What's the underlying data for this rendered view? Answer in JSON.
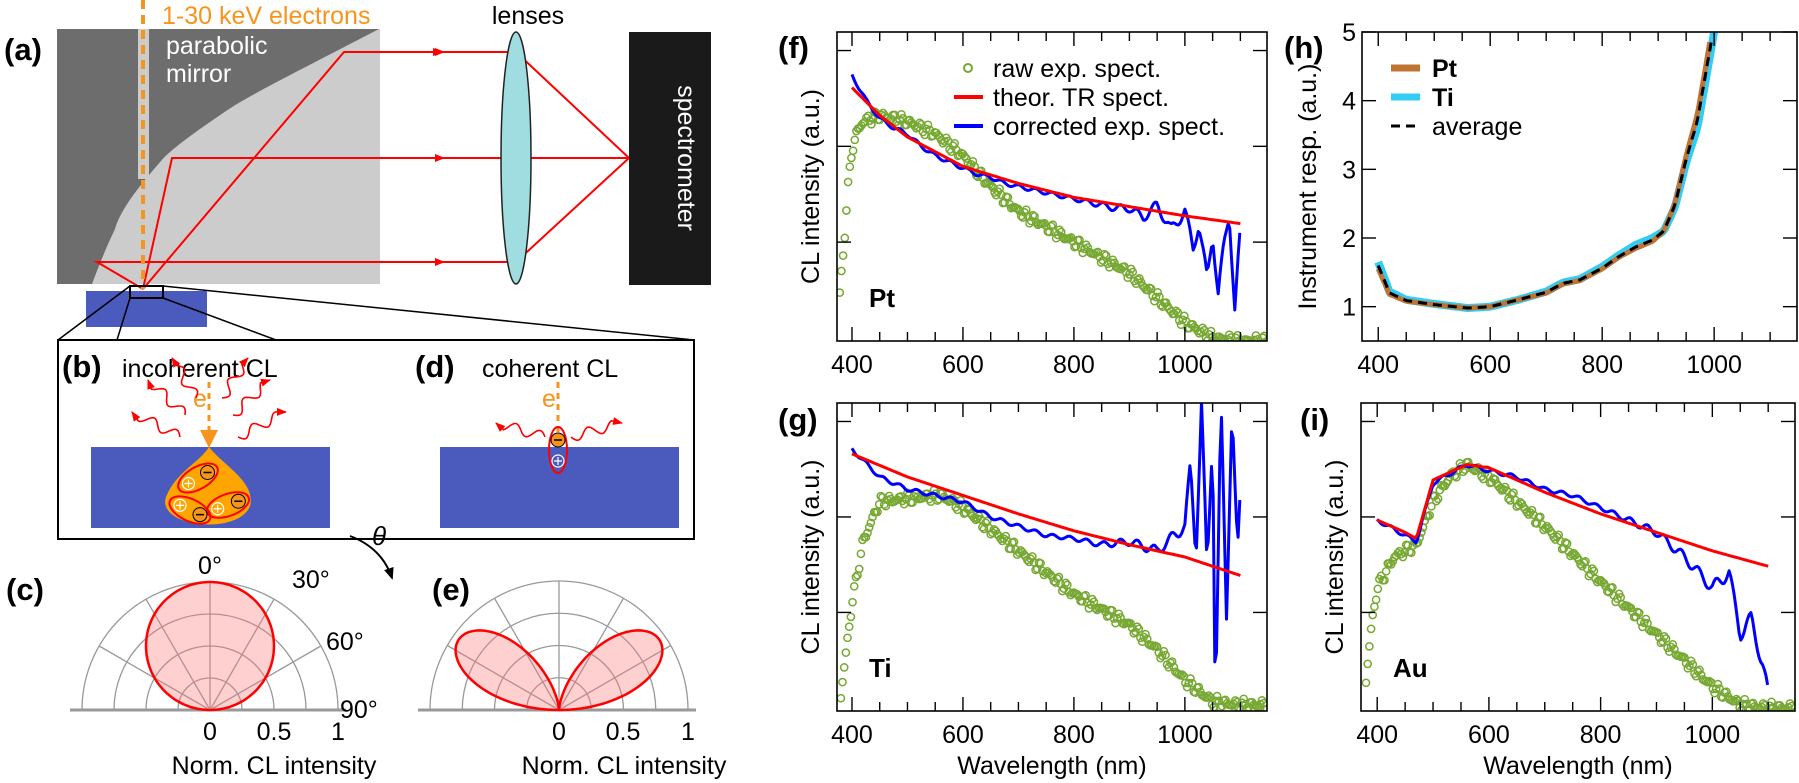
{
  "panel_labels": {
    "a": "(a)",
    "b": "(b)",
    "c": "(c)",
    "d": "(d)",
    "e": "(e)",
    "f": "(f)",
    "g": "(g)",
    "h": "(h)",
    "i": "(i)"
  },
  "diagram": {
    "beam_label": "1-30 keV electrons",
    "mirror_label_line1": "parabolic",
    "mirror_label_line2": "mirror",
    "lenses_label": "lenses",
    "spectrometer_label": "spectrometer",
    "b_title": "incoherent CL",
    "d_title": "coherent CL",
    "electron_symbol_b": "e",
    "electron_symbol_d": "e",
    "icons": [
      "electron-minus-icon",
      "hole-plus-icon",
      "photon-wavy-arrow-icon"
    ],
    "colors": {
      "beam": "#f7941d",
      "mirror_dark": "#6d6d6d",
      "mirror_light": "#cccccc",
      "lens": "#9fdde0",
      "sample": "#4a5bbd",
      "ray": "#ff0000",
      "interaction_volume": "#ffa500",
      "spectrometer": "#1a1a1a"
    }
  },
  "polar": [
    {
      "panel": "c",
      "angle_labels": [
        "0°",
        "30°",
        "60°",
        "90°"
      ],
      "theta_symbol": "θ",
      "r_tick_labels": [
        "0",
        "0.5",
        "1"
      ],
      "xlabel": "Norm. CL intensity",
      "lobe": "lambertian"
    },
    {
      "panel": "e",
      "r_tick_labels": [
        "0",
        "0.5",
        "1"
      ],
      "xlabel": "Norm. CL intensity",
      "lobe": "transition-radiation"
    }
  ],
  "chart_data": [
    {
      "panel": "f",
      "type": "line",
      "title": "",
      "xlabel": "",
      "ylabel": "CL intensity (a.u.)",
      "xlim": [
        373,
        1148
      ],
      "ylim": [
        0,
        1
      ],
      "grid": false,
      "x_ticks": [
        400,
        600,
        800,
        1000
      ],
      "x_tick_labels": [
        "400",
        "600",
        "800",
        "1000"
      ],
      "y_ticks": [
        0.32,
        0.63,
        0.94
      ],
      "y_tick_labels": [],
      "sample_label": "Pt",
      "legend_position": "top-right",
      "series": [
        {
          "name": "raw exp. spect.",
          "style": "markers",
          "color": "#76a832",
          "x": [
            378,
            385,
            392,
            400,
            410,
            420,
            450,
            500,
            550,
            600,
            650,
            700,
            750,
            800,
            850,
            900,
            950,
            1000,
            1050,
            1100,
            1150
          ],
          "y": [
            0.15,
            0.3,
            0.48,
            0.62,
            0.68,
            0.71,
            0.73,
            0.71,
            0.67,
            0.6,
            0.5,
            0.42,
            0.37,
            0.32,
            0.27,
            0.22,
            0.14,
            0.06,
            0.01,
            0.0,
            0.0
          ]
        },
        {
          "name": "corrected exp. spect.",
          "style": "line",
          "color": "#0000ff",
          "x": [
            400,
            425,
            450,
            475,
            500,
            525,
            550,
            575,
            600,
            625,
            650,
            675,
            700,
            725,
            750,
            775,
            800,
            825,
            850,
            875,
            900,
            925,
            950,
            975,
            1000,
            1015,
            1025,
            1040,
            1050,
            1060,
            1070,
            1080,
            1090,
            1100
          ],
          "y": [
            0.86,
            0.78,
            0.72,
            0.69,
            0.67,
            0.63,
            0.6,
            0.58,
            0.56,
            0.54,
            0.53,
            0.51,
            0.5,
            0.49,
            0.48,
            0.47,
            0.46,
            0.45,
            0.44,
            0.43,
            0.43,
            0.4,
            0.44,
            0.36,
            0.42,
            0.3,
            0.38,
            0.2,
            0.35,
            0.15,
            0.3,
            0.42,
            0.1,
            0.35
          ]
        },
        {
          "name": "theor. TR spect.",
          "style": "line",
          "color": "#ff0000",
          "x": [
            400,
            450,
            500,
            600,
            700,
            800,
            900,
            1000,
            1100
          ],
          "y": [
            0.82,
            0.73,
            0.66,
            0.565,
            0.51,
            0.465,
            0.435,
            0.405,
            0.38
          ]
        }
      ]
    },
    {
      "panel": "h",
      "type": "line",
      "title": "",
      "xlabel": "",
      "ylabel": "Instrument resp. (a.u.)",
      "xlim": [
        371,
        1148
      ],
      "ylim": [
        0.5,
        5
      ],
      "grid": false,
      "x_ticks": [
        400,
        600,
        800,
        1000
      ],
      "x_tick_labels": [
        "400",
        "600",
        "800",
        "1000"
      ],
      "y_ticks": [
        1,
        2,
        3,
        4,
        5
      ],
      "y_tick_labels": [
        "1",
        "2",
        "3",
        "4",
        "5"
      ],
      "legend_position": "top-left",
      "series": [
        {
          "name": "Ti",
          "style": "line",
          "color": "#33ccf5",
          "x": [
            400,
            420,
            450,
            500,
            560,
            600,
            650,
            700,
            730,
            760,
            800,
            830,
            860,
            890,
            910,
            930,
            950,
            970,
            985,
            1000
          ],
          "y": [
            1.65,
            1.22,
            1.1,
            1.04,
            0.98,
            1.0,
            1.1,
            1.22,
            1.35,
            1.4,
            1.58,
            1.75,
            1.9,
            2.0,
            2.1,
            2.45,
            3.1,
            3.6,
            4.3,
            5.0
          ]
        },
        {
          "name": "Pt",
          "style": "line",
          "color": "#bf7432",
          "x": [
            400,
            420,
            450,
            500,
            560,
            600,
            650,
            700,
            730,
            760,
            800,
            830,
            860,
            890,
            910,
            930,
            950,
            970,
            985,
            995
          ],
          "y": [
            1.55,
            1.18,
            1.08,
            1.03,
            0.98,
            1.0,
            1.1,
            1.2,
            1.33,
            1.38,
            1.55,
            1.72,
            1.85,
            1.95,
            2.1,
            2.5,
            3.2,
            3.8,
            4.5,
            5.0
          ]
        },
        {
          "name": "average",
          "style": "dashed",
          "color": "#000000",
          "x": [
            400,
            420,
            450,
            500,
            560,
            600,
            650,
            700,
            730,
            760,
            800,
            830,
            860,
            890,
            910,
            930,
            950,
            970,
            985,
            998
          ],
          "y": [
            1.6,
            1.2,
            1.09,
            1.03,
            0.98,
            1.0,
            1.1,
            1.21,
            1.34,
            1.39,
            1.56,
            1.73,
            1.87,
            1.97,
            2.1,
            2.48,
            3.15,
            3.7,
            4.4,
            5.0
          ]
        }
      ]
    },
    {
      "panel": "g",
      "type": "line",
      "title": "",
      "xlabel": "Wavelength (nm)",
      "ylabel": "CL intensity (a.u.)",
      "xlim": [
        373,
        1148
      ],
      "ylim": [
        0,
        1
      ],
      "grid": false,
      "x_ticks": [
        400,
        600,
        800,
        1000
      ],
      "x_tick_labels": [
        "400",
        "600",
        "800",
        "1000"
      ],
      "y_ticks": [
        0.32,
        0.63,
        0.94
      ],
      "y_tick_labels": [],
      "sample_label": "Ti",
      "series": [
        {
          "style": "markers",
          "color": "#76a832",
          "x": [
            380,
            390,
            400,
            420,
            450,
            500,
            560,
            600,
            700,
            800,
            900,
            950,
            1000,
            1050,
            1100,
            1150
          ],
          "y": [
            0.05,
            0.2,
            0.35,
            0.55,
            0.68,
            0.69,
            0.7,
            0.66,
            0.52,
            0.38,
            0.28,
            0.2,
            0.1,
            0.03,
            0.02,
            0.02
          ]
        },
        {
          "style": "line",
          "color": "#0000ff",
          "x": [
            400,
            450,
            500,
            550,
            600,
            650,
            700,
            750,
            800,
            850,
            900,
            950,
            1000,
            1010,
            1020,
            1030,
            1040,
            1050,
            1055,
            1065,
            1075,
            1085,
            1095,
            1100
          ],
          "y": [
            0.85,
            0.76,
            0.72,
            0.7,
            0.68,
            0.63,
            0.6,
            0.57,
            0.56,
            0.54,
            0.55,
            0.52,
            0.6,
            0.8,
            0.5,
            1.0,
            0.45,
            0.9,
            0.0,
            1.0,
            0.3,
            1.0,
            0.5,
            0.7
          ]
        },
        {
          "style": "line",
          "color": "#ff0000",
          "x": [
            400,
            500,
            600,
            700,
            800,
            900,
            1000,
            1100
          ],
          "y": [
            0.835,
            0.76,
            0.7,
            0.64,
            0.585,
            0.54,
            0.5,
            0.44
          ]
        }
      ]
    },
    {
      "panel": "i",
      "type": "line",
      "title": "",
      "xlabel": "Wavelength (nm)",
      "ylabel": "CL intensity (a.u.)",
      "xlim": [
        371,
        1148
      ],
      "ylim": [
        0,
        1
      ],
      "grid": false,
      "x_ticks": [
        400,
        600,
        800,
        1000
      ],
      "x_tick_labels": [
        "400",
        "600",
        "800",
        "1000"
      ],
      "y_ticks": [
        0.32,
        0.63,
        0.94
      ],
      "y_tick_labels": [],
      "sample_label": "Au",
      "series": [
        {
          "style": "markers",
          "color": "#76a832",
          "x": [
            380,
            390,
            400,
            430,
            470,
            500,
            530,
            560,
            600,
            700,
            800,
            900,
            1000,
            1050,
            1100,
            1150
          ],
          "y": [
            0.1,
            0.28,
            0.4,
            0.5,
            0.54,
            0.68,
            0.76,
            0.8,
            0.76,
            0.6,
            0.42,
            0.25,
            0.08,
            0.02,
            0.01,
            0.01
          ]
        },
        {
          "style": "line",
          "color": "#0000ff",
          "x": [
            400,
            450,
            470,
            500,
            560,
            600,
            650,
            700,
            750,
            800,
            850,
            900,
            950,
            1000,
            1030,
            1050,
            1070,
            1090,
            1100
          ],
          "y": [
            0.62,
            0.57,
            0.55,
            0.74,
            0.8,
            0.78,
            0.76,
            0.72,
            0.7,
            0.66,
            0.62,
            0.58,
            0.5,
            0.4,
            0.45,
            0.25,
            0.3,
            0.15,
            0.05
          ]
        },
        {
          "style": "line",
          "color": "#ff0000",
          "x": [
            400,
            450,
            470,
            500,
            560,
            600,
            700,
            800,
            900,
            1000,
            1100
          ],
          "y": [
            0.62,
            0.58,
            0.56,
            0.75,
            0.8,
            0.79,
            0.71,
            0.64,
            0.58,
            0.52,
            0.47
          ]
        }
      ]
    }
  ]
}
